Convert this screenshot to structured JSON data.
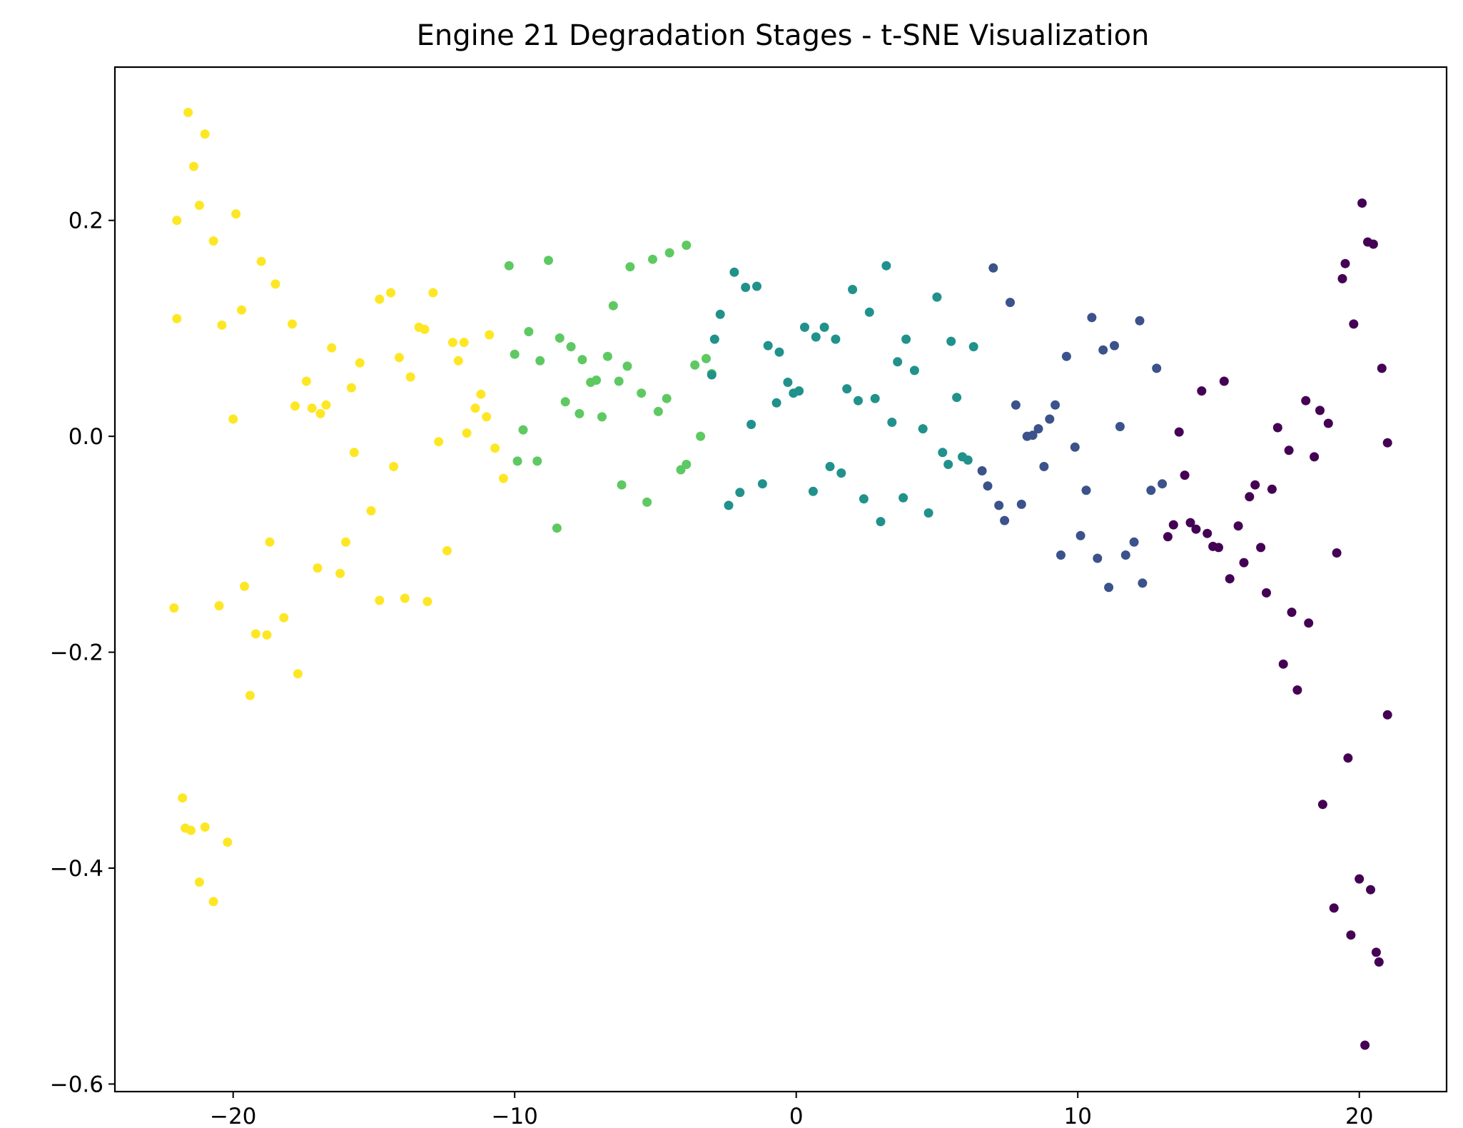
{
  "chart_data": {
    "type": "scatter",
    "title": "Engine 21 Degradation Stages - t-SNE Visualization",
    "xlabel": "",
    "ylabel": "",
    "xlim": [
      -24.2,
      23.1
    ],
    "ylim": [
      -0.607,
      0.342
    ],
    "x_ticks": [
      -20,
      -10,
      0,
      10,
      20
    ],
    "x_tick_labels": [
      "−20",
      "−10",
      "0",
      "10",
      "20"
    ],
    "y_ticks": [
      -0.6,
      -0.4,
      -0.2,
      0.0,
      0.2
    ],
    "y_tick_labels": [
      "−0.6",
      "−0.4",
      "−0.2",
      "0.0",
      "0.2"
    ],
    "grid": false,
    "legend": "none",
    "colormap": "viridis",
    "series": [
      {
        "color": "#fde725",
        "points": [
          [
            -21.6,
            0.3
          ],
          [
            -21.0,
            0.28
          ],
          [
            -21.4,
            0.25
          ],
          [
            -21.2,
            0.214
          ],
          [
            -22.0,
            0.2
          ],
          [
            -19.9,
            0.206
          ],
          [
            -20.7,
            0.181
          ],
          [
            -19.0,
            0.162
          ],
          [
            -18.5,
            0.141
          ],
          [
            -22.0,
            0.109
          ],
          [
            -19.7,
            0.117
          ],
          [
            -20.4,
            0.103
          ],
          [
            -17.9,
            0.104
          ],
          [
            -20.0,
            0.016
          ],
          [
            -14.8,
            0.127
          ],
          [
            -14.4,
            0.133
          ],
          [
            -12.9,
            0.133
          ],
          [
            -13.4,
            0.101
          ],
          [
            -13.2,
            0.099
          ],
          [
            -16.5,
            0.082
          ],
          [
            -15.5,
            0.068
          ],
          [
            -14.1,
            0.073
          ],
          [
            -12.2,
            0.087
          ],
          [
            -11.8,
            0.087
          ],
          [
            -12.0,
            0.07
          ],
          [
            -10.9,
            0.094
          ],
          [
            -13.7,
            0.055
          ],
          [
            -17.4,
            0.051
          ],
          [
            -15.8,
            0.045
          ],
          [
            -17.8,
            0.028
          ],
          [
            -17.2,
            0.026
          ],
          [
            -16.9,
            0.021
          ],
          [
            -16.7,
            0.029
          ],
          [
            -11.2,
            0.039
          ],
          [
            -11.4,
            0.026
          ],
          [
            -11.0,
            0.018
          ],
          [
            -11.7,
            0.003
          ],
          [
            -12.7,
            -0.005
          ],
          [
            -10.7,
            -0.011
          ],
          [
            -15.7,
            -0.015
          ],
          [
            -14.3,
            -0.028
          ],
          [
            -10.4,
            -0.039
          ],
          [
            -15.1,
            -0.069
          ],
          [
            -12.4,
            -0.106
          ],
          [
            -18.7,
            -0.098
          ],
          [
            -16.0,
            -0.098
          ],
          [
            -17.0,
            -0.122
          ],
          [
            -16.2,
            -0.127
          ],
          [
            -19.6,
            -0.139
          ],
          [
            -22.1,
            -0.159
          ],
          [
            -20.5,
            -0.157
          ],
          [
            -14.8,
            -0.152
          ],
          [
            -13.9,
            -0.15
          ],
          [
            -13.1,
            -0.153
          ],
          [
            -18.2,
            -0.168
          ],
          [
            -19.2,
            -0.183
          ],
          [
            -18.8,
            -0.184
          ],
          [
            -17.7,
            -0.22
          ],
          [
            -19.4,
            -0.24
          ],
          [
            -21.8,
            -0.335
          ],
          [
            -21.7,
            -0.363
          ],
          [
            -21.5,
            -0.365
          ],
          [
            -21.0,
            -0.362
          ],
          [
            -20.2,
            -0.376
          ],
          [
            -21.2,
            -0.413
          ],
          [
            -20.7,
            -0.431
          ]
        ]
      },
      {
        "color": "#5ec962",
        "points": [
          [
            -10.2,
            0.158
          ],
          [
            -8.8,
            0.163
          ],
          [
            -5.9,
            0.157
          ],
          [
            -5.1,
            0.164
          ],
          [
            -4.5,
            0.17
          ],
          [
            -3.9,
            0.177
          ],
          [
            -6.5,
            0.121
          ],
          [
            -9.5,
            0.097
          ],
          [
            -8.4,
            0.091
          ],
          [
            -8.0,
            0.083
          ],
          [
            -10.0,
            0.076
          ],
          [
            -9.1,
            0.07
          ],
          [
            -7.6,
            0.071
          ],
          [
            -6.7,
            0.074
          ],
          [
            -6.0,
            0.065
          ],
          [
            -3.6,
            0.066
          ],
          [
            -3.2,
            0.072
          ],
          [
            -3.0,
            0.058
          ],
          [
            -7.3,
            0.05
          ],
          [
            -7.1,
            0.052
          ],
          [
            -6.3,
            0.051
          ],
          [
            -5.5,
            0.04
          ],
          [
            -4.6,
            0.035
          ],
          [
            -8.2,
            0.032
          ],
          [
            -7.7,
            0.021
          ],
          [
            -6.9,
            0.018
          ],
          [
            -4.9,
            0.023
          ],
          [
            -9.7,
            0.006
          ],
          [
            -9.9,
            -0.023
          ],
          [
            -9.2,
            -0.023
          ],
          [
            -3.4,
            0.0
          ],
          [
            -3.9,
            -0.026
          ],
          [
            -4.1,
            -0.031
          ],
          [
            -6.2,
            -0.045
          ],
          [
            -5.3,
            -0.061
          ],
          [
            -8.5,
            -0.085
          ]
        ]
      },
      {
        "color": "#21918c",
        "points": [
          [
            -2.2,
            0.152
          ],
          [
            -1.8,
            0.138
          ],
          [
            -1.4,
            0.139
          ],
          [
            3.2,
            0.158
          ],
          [
            2.0,
            0.136
          ],
          [
            5.0,
            0.129
          ],
          [
            2.6,
            0.115
          ],
          [
            -2.7,
            0.113
          ],
          [
            0.3,
            0.101
          ],
          [
            1.0,
            0.101
          ],
          [
            0.7,
            0.092
          ],
          [
            1.4,
            0.09
          ],
          [
            -2.9,
            0.09
          ],
          [
            3.9,
            0.09
          ],
          [
            5.5,
            0.088
          ],
          [
            -1.0,
            0.084
          ],
          [
            -0.6,
            0.078
          ],
          [
            6.3,
            0.083
          ],
          [
            3.6,
            0.069
          ],
          [
            4.2,
            0.061
          ],
          [
            -3.0,
            0.057
          ],
          [
            -0.3,
            0.05
          ],
          [
            -0.1,
            0.04
          ],
          [
            0.1,
            0.042
          ],
          [
            1.8,
            0.044
          ],
          [
            2.2,
            0.033
          ],
          [
            2.8,
            0.035
          ],
          [
            5.7,
            0.036
          ],
          [
            -0.7,
            0.031
          ],
          [
            -1.6,
            0.011
          ],
          [
            3.4,
            0.013
          ],
          [
            4.5,
            0.007
          ],
          [
            5.2,
            -0.015
          ],
          [
            5.9,
            -0.019
          ],
          [
            6.1,
            -0.022
          ],
          [
            5.4,
            -0.026
          ],
          [
            1.2,
            -0.028
          ],
          [
            1.6,
            -0.034
          ],
          [
            -1.2,
            -0.044
          ],
          [
            0.6,
            -0.051
          ],
          [
            -2.0,
            -0.052
          ],
          [
            2.4,
            -0.058
          ],
          [
            3.8,
            -0.057
          ],
          [
            -2.4,
            -0.064
          ],
          [
            4.7,
            -0.071
          ],
          [
            3.0,
            -0.079
          ]
        ]
      },
      {
        "color": "#3b528b",
        "points": [
          [
            7.0,
            0.156
          ],
          [
            7.6,
            0.124
          ],
          [
            10.5,
            0.11
          ],
          [
            12.2,
            0.107
          ],
          [
            11.3,
            0.084
          ],
          [
            10.9,
            0.08
          ],
          [
            9.6,
            0.074
          ],
          [
            12.8,
            0.063
          ],
          [
            7.8,
            0.029
          ],
          [
            9.2,
            0.029
          ],
          [
            9.0,
            0.016
          ],
          [
            8.6,
            0.007
          ],
          [
            11.5,
            0.009
          ],
          [
            8.4,
            0.001
          ],
          [
            8.2,
            0.0
          ],
          [
            9.9,
            -0.01
          ],
          [
            6.6,
            -0.032
          ],
          [
            8.8,
            -0.028
          ],
          [
            6.8,
            -0.046
          ],
          [
            13.0,
            -0.044
          ],
          [
            10.3,
            -0.05
          ],
          [
            12.6,
            -0.05
          ],
          [
            7.2,
            -0.064
          ],
          [
            8.0,
            -0.063
          ],
          [
            7.4,
            -0.078
          ],
          [
            10.1,
            -0.092
          ],
          [
            9.4,
            -0.11
          ],
          [
            10.7,
            -0.113
          ],
          [
            11.7,
            -0.11
          ],
          [
            12.0,
            -0.098
          ],
          [
            11.1,
            -0.14
          ],
          [
            12.3,
            -0.136
          ]
        ]
      },
      {
        "color": "#440154",
        "points": [
          [
            20.1,
            0.216
          ],
          [
            20.3,
            0.18
          ],
          [
            20.5,
            0.178
          ],
          [
            19.5,
            0.16
          ],
          [
            19.4,
            0.146
          ],
          [
            19.8,
            0.104
          ],
          [
            20.8,
            0.063
          ],
          [
            15.2,
            0.051
          ],
          [
            14.4,
            0.042
          ],
          [
            18.1,
            0.033
          ],
          [
            18.6,
            0.024
          ],
          [
            18.9,
            0.012
          ],
          [
            17.1,
            0.008
          ],
          [
            13.6,
            0.004
          ],
          [
            21.0,
            -0.006
          ],
          [
            17.5,
            -0.013
          ],
          [
            18.4,
            -0.019
          ],
          [
            13.8,
            -0.036
          ],
          [
            16.3,
            -0.045
          ],
          [
            16.9,
            -0.049
          ],
          [
            16.1,
            -0.056
          ],
          [
            13.4,
            -0.082
          ],
          [
            14.0,
            -0.08
          ],
          [
            14.2,
            -0.086
          ],
          [
            13.2,
            -0.093
          ],
          [
            14.6,
            -0.09
          ],
          [
            15.7,
            -0.083
          ],
          [
            14.8,
            -0.102
          ],
          [
            15.0,
            -0.103
          ],
          [
            16.5,
            -0.103
          ],
          [
            19.2,
            -0.108
          ],
          [
            15.9,
            -0.117
          ],
          [
            15.4,
            -0.132
          ],
          [
            16.7,
            -0.145
          ],
          [
            17.6,
            -0.163
          ],
          [
            18.2,
            -0.173
          ],
          [
            17.3,
            -0.211
          ],
          [
            17.8,
            -0.235
          ],
          [
            21.0,
            -0.258
          ],
          [
            19.6,
            -0.298
          ],
          [
            18.7,
            -0.341
          ],
          [
            20.0,
            -0.41
          ],
          [
            20.4,
            -0.42
          ],
          [
            19.1,
            -0.437
          ],
          [
            19.7,
            -0.462
          ],
          [
            20.6,
            -0.478
          ],
          [
            20.7,
            -0.487
          ],
          [
            20.2,
            -0.564
          ]
        ]
      }
    ]
  }
}
